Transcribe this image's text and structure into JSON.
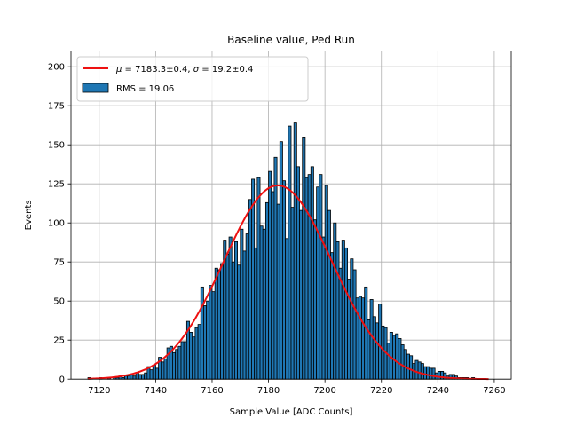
{
  "chart_data": {
    "type": "bar",
    "title": "Baseline value, Ped Run",
    "xlabel": "Sample Value [ADC Counts]",
    "ylabel": "Events",
    "xlim": [
      7110,
      7266
    ],
    "ylim": [
      0,
      210
    ],
    "xticks": [
      7120,
      7140,
      7160,
      7180,
      7200,
      7220,
      7240,
      7260
    ],
    "yticks": [
      0,
      25,
      50,
      75,
      100,
      125,
      150,
      175,
      200
    ],
    "grid": true,
    "legend_position": "top-left",
    "histogram": {
      "name": "RMS = 19.06",
      "bin_start": 7116,
      "bin_width": 1,
      "values": [
        1,
        0,
        0,
        0,
        1,
        0,
        0,
        1,
        0,
        1,
        1,
        2,
        1,
        2,
        2,
        3,
        2,
        4,
        3,
        3,
        4,
        8,
        6,
        9,
        7,
        14,
        11,
        13,
        20,
        21,
        17,
        19,
        21,
        24,
        24,
        37,
        30,
        27,
        33,
        35,
        59,
        47,
        50,
        60,
        56,
        71,
        70,
        74,
        89,
        80,
        91,
        75,
        88,
        73,
        96,
        82,
        93,
        115,
        128,
        84,
        129,
        98,
        96,
        113,
        133,
        120,
        142,
        112,
        152,
        127,
        90,
        162,
        110,
        164,
        136,
        108,
        155,
        129,
        131,
        136,
        102,
        123,
        131,
        91,
        124,
        108,
        81,
        100,
        88,
        71,
        89,
        84,
        64,
        77,
        70,
        52,
        53,
        52,
        59,
        38,
        51,
        40,
        36,
        48,
        34,
        33,
        23,
        30,
        28,
        29,
        26,
        22,
        19,
        16,
        15,
        10,
        12,
        11,
        10,
        8,
        8,
        7,
        7,
        4,
        5,
        5,
        4,
        2,
        3,
        3,
        2,
        1,
        1,
        1,
        1,
        0,
        1
      ]
    },
    "fit": {
      "name_mu_value": "7183.3±0.4",
      "name_sigma_value": "19.2±0.4",
      "mu": 7183.3,
      "sigma": 19.2,
      "amplitude": 124,
      "x_range": [
        7116,
        7258
      ]
    },
    "colors": {
      "bar_fill": "#1f77b4",
      "bar_edge": "#000000",
      "fit_line": "#ee1111",
      "grid": "#b0b0b0"
    }
  }
}
